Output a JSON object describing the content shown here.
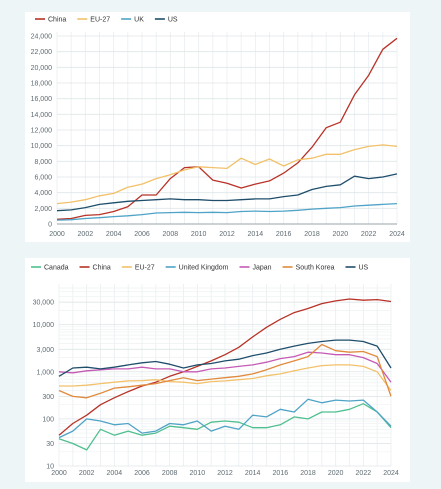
{
  "chart_data": [
    {
      "type": "line",
      "title": "",
      "xlabel": "",
      "ylabel": "",
      "x": [
        2000,
        2001,
        2002,
        2003,
        2004,
        2005,
        2006,
        2007,
        2008,
        2009,
        2010,
        2011,
        2012,
        2013,
        2014,
        2015,
        2016,
        2017,
        2018,
        2019,
        2020,
        2021,
        2022,
        2023,
        2024
      ],
      "x_ticks": [
        2000,
        2002,
        2004,
        2006,
        2008,
        2010,
        2012,
        2014,
        2016,
        2018,
        2020,
        2022,
        2024
      ],
      "ylim": [
        0,
        24000
      ],
      "y_ticks": [
        0,
        2000,
        4000,
        6000,
        8000,
        10000,
        12000,
        14000,
        16000,
        18000,
        20000,
        22000,
        24000
      ],
      "y_tick_labels": [
        "0",
        "2,000",
        "4,000",
        "6,000",
        "8,000",
        "10,000",
        "12,000",
        "14,000",
        "16,000",
        "18,000",
        "20,000",
        "22,000",
        "24,000"
      ],
      "scale": "linear",
      "grid": true,
      "legend": "top-left",
      "series": [
        {
          "name": "China",
          "color": "#b83227",
          "values": [
            600,
            700,
            1100,
            1200,
            1600,
            2200,
            3700,
            3700,
            5800,
            7200,
            7300,
            5600,
            5200,
            4600,
            5100,
            5500,
            6500,
            7800,
            9800,
            12300,
            13000,
            16500,
            19000,
            22300,
            23700
          ]
        },
        {
          "name": "EU-27",
          "color": "#f2c16a",
          "values": [
            2600,
            2800,
            3100,
            3600,
            3900,
            4700,
            5100,
            5800,
            6300,
            6900,
            7300,
            7200,
            7100,
            8400,
            7600,
            8300,
            7400,
            8200,
            8400,
            8900,
            8900,
            9500,
            9900,
            10100,
            9900
          ]
        },
        {
          "name": "UK",
          "color": "#4fa3c7",
          "values": [
            500,
            550,
            700,
            800,
            950,
            1050,
            1200,
            1400,
            1450,
            1500,
            1450,
            1500,
            1450,
            1600,
            1650,
            1600,
            1650,
            1750,
            1900,
            2000,
            2100,
            2300,
            2400,
            2500,
            2600
          ]
        },
        {
          "name": "US",
          "color": "#1f4e6b",
          "values": [
            1700,
            1800,
            2100,
            2500,
            2700,
            2900,
            3000,
            3100,
            3200,
            3100,
            3100,
            3000,
            3000,
            3100,
            3200,
            3200,
            3500,
            3700,
            4400,
            4800,
            5000,
            6100,
            5800,
            6000,
            6400
          ]
        }
      ]
    },
    {
      "type": "line",
      "title": "",
      "xlabel": "",
      "ylabel": "",
      "x": [
        2000,
        2001,
        2002,
        2003,
        2004,
        2005,
        2006,
        2007,
        2008,
        2009,
        2010,
        2011,
        2012,
        2013,
        2014,
        2015,
        2016,
        2017,
        2018,
        2019,
        2020,
        2021,
        2022,
        2023,
        2024
      ],
      "x_ticks": [
        2000,
        2002,
        2004,
        2006,
        2008,
        2010,
        2012,
        2014,
        2016,
        2018,
        2020,
        2022,
        2024
      ],
      "ylim": [
        10,
        60000
      ],
      "y_ticks": [
        10,
        30,
        100,
        300,
        1000,
        3000,
        10000,
        30000
      ],
      "y_tick_labels": [
        "10",
        "30",
        "100",
        "300",
        "1,000",
        "3,000",
        "10,000",
        "30,000"
      ],
      "scale": "log",
      "grid": true,
      "legend": "top-left",
      "series": [
        {
          "name": "Canada",
          "color": "#4fbf8f",
          "values": [
            38,
            30,
            22,
            60,
            45,
            55,
            45,
            50,
            70,
            65,
            60,
            85,
            90,
            85,
            65,
            65,
            75,
            110,
            100,
            140,
            140,
            160,
            210,
            140,
            65
          ]
        },
        {
          "name": "China",
          "color": "#b83227",
          "values": [
            45,
            80,
            120,
            200,
            280,
            380,
            500,
            600,
            800,
            1000,
            1300,
            1700,
            2300,
            3300,
            5500,
            8800,
            13000,
            18000,
            22000,
            28000,
            32000,
            35000,
            33000,
            34000,
            31000
          ]
        },
        {
          "name": "EU-27",
          "color": "#f2c16a",
          "values": [
            500,
            500,
            520,
            560,
            600,
            640,
            650,
            680,
            620,
            600,
            560,
            620,
            640,
            680,
            720,
            820,
            900,
            1050,
            1200,
            1350,
            1400,
            1400,
            1300,
            1000,
            400
          ]
        },
        {
          "name": "United Kingdom",
          "color": "#4fa3c7",
          "values": [
            40,
            55,
            100,
            90,
            75,
            80,
            50,
            55,
            80,
            75,
            90,
            55,
            70,
            60,
            120,
            110,
            160,
            140,
            260,
            220,
            250,
            240,
            250,
            140,
            70
          ]
        },
        {
          "name": "Japan",
          "color": "#c55bb5",
          "values": [
            1000,
            950,
            1050,
            1100,
            1150,
            1150,
            1250,
            1150,
            1150,
            1000,
            1000,
            1150,
            1200,
            1300,
            1400,
            1600,
            1900,
            2100,
            2600,
            2500,
            2300,
            2300,
            2000,
            1500,
            600
          ]
        },
        {
          "name": "South Korea",
          "color": "#e08a3c",
          "values": [
            400,
            300,
            280,
            350,
            450,
            480,
            520,
            560,
            650,
            750,
            650,
            700,
            750,
            800,
            900,
            1100,
            1400,
            1700,
            2100,
            3800,
            2800,
            2600,
            2700,
            2100,
            300
          ]
        },
        {
          "name": "US",
          "color": "#1f4e6b",
          "values": [
            800,
            1200,
            1250,
            1150,
            1250,
            1400,
            1550,
            1650,
            1450,
            1200,
            1400,
            1500,
            1700,
            1850,
            2200,
            2500,
            3000,
            3500,
            4000,
            4400,
            4700,
            4700,
            4400,
            3500,
            1200
          ]
        }
      ]
    }
  ]
}
